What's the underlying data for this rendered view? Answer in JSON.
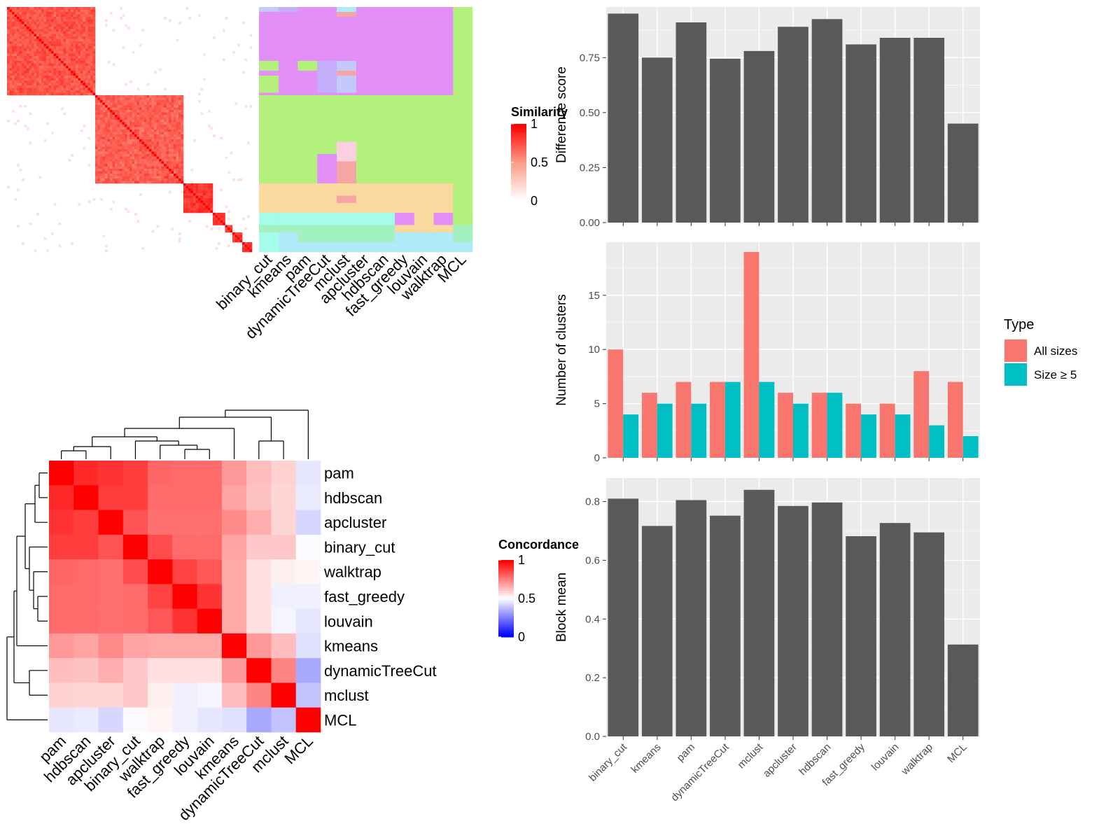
{
  "chart_data": [
    {
      "type": "heatmap",
      "id": "similarity_heatmap",
      "legend_title": "Similarity",
      "legend_ticks": [
        "1",
        "0.5",
        "0"
      ],
      "legend_colors": {
        "low": "#ffffff",
        "mid": "#fb9a86",
        "high": "#ff0000"
      },
      "blocks": [
        {
          "start": 0.0,
          "end": 0.36,
          "value": 0.85
        },
        {
          "start": 0.36,
          "end": 0.72,
          "value": 0.82
        },
        {
          "start": 0.72,
          "end": 0.84,
          "value": 0.95
        },
        {
          "start": 0.84,
          "end": 0.89,
          "value": 0.95
        },
        {
          "start": 0.89,
          "end": 0.92,
          "value": 0.95
        },
        {
          "start": 0.92,
          "end": 0.96,
          "value": 0.95
        },
        {
          "start": 0.96,
          "end": 1.0,
          "value": 0.95
        }
      ]
    },
    {
      "type": "heatmap",
      "id": "cluster_assignment_strip",
      "columns": [
        "binary_cut",
        "kmeans",
        "pam",
        "dynamicTreeCut",
        "mclust",
        "apcluster",
        "hdbscan",
        "fast_greedy",
        "louvain",
        "walktrap",
        "MCL"
      ],
      "cluster_colors": [
        "#e28ff7",
        "#b3f07c",
        "#fad99e",
        "#a3fde8",
        "#a3f0c1",
        "#c3c9fa",
        "#c5aefb",
        "#f6a4a4",
        "#fad0e0",
        "#aeeaf8"
      ]
    },
    {
      "type": "heatmap",
      "id": "concordance_heatmap",
      "legend_title": "Concordance",
      "legend_ticks": [
        "1",
        "0.5",
        "0"
      ],
      "legend_colors": {
        "low": "#0000ff",
        "mid": "#ffffff",
        "high": "#ff0000"
      },
      "rows": [
        "pam",
        "hdbscan",
        "apcluster",
        "binary_cut",
        "walktrap",
        "fast_greedy",
        "louvain",
        "kmeans",
        "dynamicTreeCut",
        "mclust",
        "MCL"
      ],
      "cols": [
        "pam",
        "hdbscan",
        "apcluster",
        "binary_cut",
        "walktrap",
        "fast_greedy",
        "louvain",
        "kmeans",
        "dynamicTreeCut",
        "mclust",
        "MCL"
      ],
      "values": [
        [
          1.0,
          0.92,
          0.9,
          0.88,
          0.8,
          0.79,
          0.79,
          0.7,
          0.63,
          0.59,
          0.45
        ],
        [
          0.92,
          1.0,
          0.88,
          0.88,
          0.79,
          0.79,
          0.79,
          0.68,
          0.62,
          0.58,
          0.46
        ],
        [
          0.9,
          0.88,
          1.0,
          0.84,
          0.78,
          0.78,
          0.78,
          0.73,
          0.66,
          0.58,
          0.42
        ],
        [
          0.88,
          0.88,
          0.84,
          1.0,
          0.85,
          0.79,
          0.79,
          0.68,
          0.61,
          0.61,
          0.49
        ],
        [
          0.8,
          0.79,
          0.78,
          0.85,
          1.0,
          0.87,
          0.83,
          0.67,
          0.56,
          0.53,
          0.52
        ],
        [
          0.79,
          0.79,
          0.78,
          0.79,
          0.87,
          1.0,
          0.9,
          0.67,
          0.56,
          0.47,
          0.47
        ],
        [
          0.79,
          0.79,
          0.78,
          0.79,
          0.83,
          0.9,
          1.0,
          0.67,
          0.56,
          0.48,
          0.45
        ],
        [
          0.7,
          0.68,
          0.73,
          0.68,
          0.67,
          0.67,
          0.67,
          1.0,
          0.7,
          0.63,
          0.44
        ],
        [
          0.63,
          0.62,
          0.66,
          0.61,
          0.56,
          0.56,
          0.56,
          0.7,
          1.0,
          0.74,
          0.33
        ],
        [
          0.59,
          0.58,
          0.58,
          0.61,
          0.53,
          0.47,
          0.48,
          0.63,
          0.74,
          1.0,
          0.38
        ],
        [
          0.45,
          0.46,
          0.42,
          0.49,
          0.52,
          0.47,
          0.45,
          0.44,
          0.33,
          0.38,
          1.0
        ]
      ]
    },
    {
      "type": "bar",
      "id": "difference_score",
      "categories": [
        "binary_cut",
        "kmeans",
        "pam",
        "dynamicTreeCut",
        "mclust",
        "apcluster",
        "hdbscan",
        "fast_greedy",
        "louvain",
        "walktrap",
        "MCL"
      ],
      "values": [
        0.95,
        0.75,
        0.91,
        0.745,
        0.78,
        0.89,
        0.925,
        0.81,
        0.84,
        0.84,
        0.45
      ],
      "xlabel": "",
      "ylabel": "Difference score",
      "ylim": [
        0,
        0.98
      ],
      "yticks": [
        0,
        0.25,
        0.5,
        0.75
      ],
      "ytick_labels": [
        "0.00",
        "0.25",
        "0.50",
        "0.75"
      ],
      "grid": true,
      "bar_color": "#595959"
    },
    {
      "type": "bar",
      "id": "number_of_clusters",
      "categories": [
        "binary_cut",
        "kmeans",
        "pam",
        "dynamicTreeCut",
        "mclust",
        "apcluster",
        "hdbscan",
        "fast_greedy",
        "louvain",
        "walktrap",
        "MCL"
      ],
      "series": [
        {
          "name": "All sizes",
          "values": [
            10,
            6,
            7,
            7,
            19,
            6,
            6,
            5,
            5,
            8,
            7
          ],
          "color": "#f8766d"
        },
        {
          "name": "Size ≥ 5",
          "values": [
            4,
            5,
            5,
            7,
            7,
            5,
            6,
            4,
            4,
            3,
            2
          ],
          "color": "#00bfc4"
        }
      ],
      "xlabel": "",
      "ylabel": "Number of clusters",
      "ylim": [
        0,
        19.9
      ],
      "yticks": [
        0,
        5,
        10,
        15
      ],
      "ytick_labels": [
        "0",
        "5",
        "10",
        "15"
      ],
      "legend_title": "Type",
      "legend_position": "right",
      "grid": true
    },
    {
      "type": "bar",
      "id": "block_mean",
      "categories": [
        "binary_cut",
        "kmeans",
        "pam",
        "dynamicTreeCut",
        "mclust",
        "apcluster",
        "hdbscan",
        "fast_greedy",
        "louvain",
        "walktrap",
        "MCL"
      ],
      "values": [
        0.81,
        0.717,
        0.805,
        0.752,
        0.84,
        0.785,
        0.797,
        0.682,
        0.727,
        0.695,
        0.313
      ],
      "xlabel": "",
      "ylabel": "Block mean",
      "ylim": [
        0,
        0.88
      ],
      "yticks": [
        0,
        0.2,
        0.4,
        0.6,
        0.8
      ],
      "ytick_labels": [
        "0.0",
        "0.2",
        "0.4",
        "0.6",
        "0.8"
      ],
      "grid": true,
      "bar_color": "#595959"
    }
  ]
}
